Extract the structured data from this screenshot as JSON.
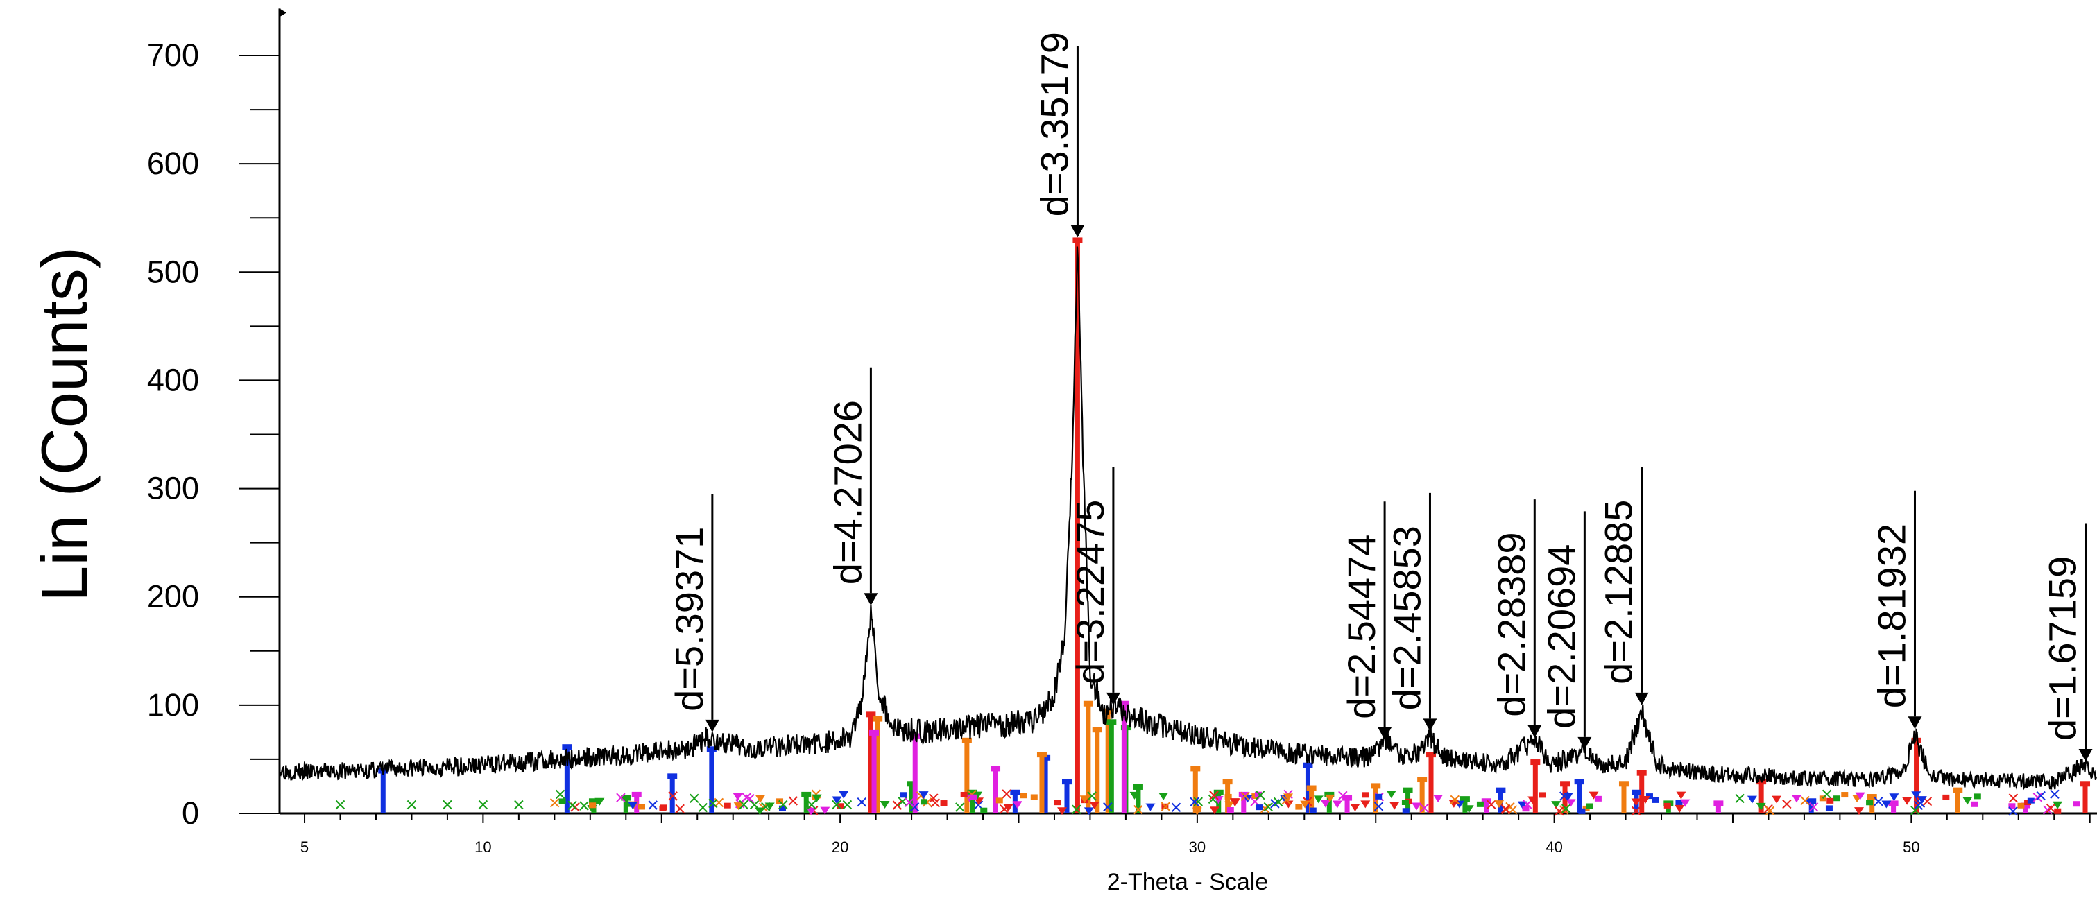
{
  "chart_data": {
    "type": "line",
    "title": "",
    "xlabel": "2-Theta - Scale",
    "ylabel": "Lin (Counts)",
    "xlim": [
      4.3,
      55.2
    ],
    "ylim": [
      0,
      700
    ],
    "x_ticks": [
      5,
      10,
      20,
      30,
      40,
      50
    ],
    "y_ticks": [
      0,
      100,
      200,
      300,
      400,
      500,
      600,
      700
    ],
    "series": [
      {
        "points": [
          [
            4.3,
            40
          ],
          [
            5,
            38
          ],
          [
            6,
            39
          ],
          [
            7,
            40
          ],
          [
            8,
            42
          ],
          [
            9,
            43
          ],
          [
            10,
            45
          ],
          [
            11,
            47
          ],
          [
            12,
            50
          ],
          [
            13,
            52
          ],
          [
            14,
            54
          ],
          [
            15,
            57
          ],
          [
            15.8,
            61
          ],
          [
            16.3,
            70
          ],
          [
            16.8,
            64
          ],
          [
            17.5,
            61
          ],
          [
            18.5,
            63
          ],
          [
            19.5,
            65
          ],
          [
            20.3,
            70
          ],
          [
            20.6,
            105
          ],
          [
            20.86,
            188
          ],
          [
            21.1,
            110
          ],
          [
            21.5,
            78
          ],
          [
            22.5,
            76
          ],
          [
            23.5,
            79
          ],
          [
            24.5,
            82
          ],
          [
            25.5,
            86
          ],
          [
            26.0,
            110
          ],
          [
            26.3,
            170
          ],
          [
            26.5,
            330
          ],
          [
            26.65,
            530
          ],
          [
            26.8,
            330
          ],
          [
            27.0,
            130
          ],
          [
            27.4,
            92
          ],
          [
            27.65,
            100
          ],
          [
            28.0,
            92
          ],
          [
            29,
            80
          ],
          [
            30,
            72
          ],
          [
            31,
            64
          ],
          [
            32,
            58
          ],
          [
            33,
            55
          ],
          [
            34,
            52
          ],
          [
            34.8,
            52
          ],
          [
            35.25,
            68
          ],
          [
            35.7,
            52
          ],
          [
            36.2,
            56
          ],
          [
            36.52,
            73
          ],
          [
            36.9,
            52
          ],
          [
            37.5,
            50
          ],
          [
            38.5,
            44
          ],
          [
            39.45,
            68
          ],
          [
            39.9,
            45
          ],
          [
            40.85,
            57
          ],
          [
            41.3,
            43
          ],
          [
            42.0,
            48
          ],
          [
            42.45,
            95
          ],
          [
            42.9,
            44
          ],
          [
            44,
            38
          ],
          [
            45,
            35
          ],
          [
            46,
            35
          ],
          [
            47,
            32
          ],
          [
            48,
            32
          ],
          [
            49,
            31
          ],
          [
            49.8,
            38
          ],
          [
            50.1,
            72
          ],
          [
            50.5,
            38
          ],
          [
            51,
            31
          ],
          [
            52,
            31
          ],
          [
            53,
            30
          ],
          [
            54,
            29
          ],
          [
            54.9,
            46
          ],
          [
            55.2,
            28
          ]
        ]
      }
    ],
    "peaks": [
      {
        "x": 16.42,
        "y": 75,
        "label": "d=5.39371"
      },
      {
        "x": 20.86,
        "y": 192,
        "label": "d=4.27026"
      },
      {
        "x": 26.65,
        "y": 532,
        "label": "d=3.35179"
      },
      {
        "x": 27.65,
        "y": 100,
        "label": "d=3.22475"
      },
      {
        "x": 35.25,
        "y": 68,
        "label": "d=2.54474"
      },
      {
        "x": 36.52,
        "y": 76,
        "label": "d=2.45853"
      },
      {
        "x": 39.45,
        "y": 70,
        "label": "d=2.28389"
      },
      {
        "x": 40.85,
        "y": 59,
        "label": "d=2.20694"
      },
      {
        "x": 42.45,
        "y": 100,
        "label": "d=2.12885"
      },
      {
        "x": 50.1,
        "y": 78,
        "label": "d=1.81932"
      },
      {
        "x": 54.88,
        "y": 48,
        "label": "d=1.67159"
      }
    ],
    "reference_series": [
      {
        "color": "#e8201a",
        "sticks": [
          {
            "x": 20.86,
            "y": 92
          },
          {
            "x": 26.65,
            "y": 530
          },
          {
            "x": 36.55,
            "y": 55
          },
          {
            "x": 39.47,
            "y": 48
          },
          {
            "x": 40.3,
            "y": 28
          },
          {
            "x": 42.45,
            "y": 38
          },
          {
            "x": 45.8,
            "y": 30
          },
          {
            "x": 50.14,
            "y": 68
          },
          {
            "x": 54.87,
            "y": 28
          }
        ]
      },
      {
        "color": "#1030e0",
        "sticks": [
          {
            "x": 7.2,
            "y": 40
          },
          {
            "x": 12.35,
            "y": 62
          },
          {
            "x": 15.3,
            "y": 35
          },
          {
            "x": 16.4,
            "y": 60
          },
          {
            "x": 24.9,
            "y": 20
          },
          {
            "x": 25.75,
            "y": 52
          },
          {
            "x": 26.35,
            "y": 30
          },
          {
            "x": 33.1,
            "y": 45
          },
          {
            "x": 38.5,
            "y": 22
          },
          {
            "x": 40.7,
            "y": 30
          },
          {
            "x": 42.3,
            "y": 20
          },
          {
            "x": 47.2,
            "y": 12
          }
        ]
      },
      {
        "color": "#f07c10",
        "sticks": [
          {
            "x": 21.05,
            "y": 88
          },
          {
            "x": 23.55,
            "y": 68
          },
          {
            "x": 25.65,
            "y": 55
          },
          {
            "x": 26.95,
            "y": 102
          },
          {
            "x": 27.2,
            "y": 78
          },
          {
            "x": 27.5,
            "y": 95
          },
          {
            "x": 29.95,
            "y": 42
          },
          {
            "x": 30.85,
            "y": 30
          },
          {
            "x": 33.2,
            "y": 24
          },
          {
            "x": 35.0,
            "y": 26
          },
          {
            "x": 36.3,
            "y": 32
          },
          {
            "x": 41.95,
            "y": 28
          },
          {
            "x": 48.9,
            "y": 16
          },
          {
            "x": 51.3,
            "y": 22
          }
        ]
      },
      {
        "color": "#18a018",
        "sticks": [
          {
            "x": 13.1,
            "y": 12
          },
          {
            "x": 14.0,
            "y": 15
          },
          {
            "x": 19.05,
            "y": 18
          },
          {
            "x": 22.0,
            "y": 28
          },
          {
            "x": 23.7,
            "y": 20
          },
          {
            "x": 27.6,
            "y": 85
          },
          {
            "x": 28.0,
            "y": 80
          },
          {
            "x": 28.35,
            "y": 25
          },
          {
            "x": 30.6,
            "y": 20
          },
          {
            "x": 33.7,
            "y": 18
          },
          {
            "x": 35.9,
            "y": 22
          },
          {
            "x": 37.5,
            "y": 14
          },
          {
            "x": 43.2,
            "y": 10
          }
        ]
      },
      {
        "color": "#e020e0",
        "sticks": [
          {
            "x": 14.3,
            "y": 18
          },
          {
            "x": 20.95,
            "y": 75
          },
          {
            "x": 22.1,
            "y": 72
          },
          {
            "x": 24.35,
            "y": 42
          },
          {
            "x": 27.95,
            "y": 102
          },
          {
            "x": 31.3,
            "y": 18
          },
          {
            "x": 34.2,
            "y": 15
          },
          {
            "x": 38.1,
            "y": 12
          },
          {
            "x": 44.6,
            "y": 10
          },
          {
            "x": 49.5,
            "y": 10
          },
          {
            "x": 53.2,
            "y": 8
          }
        ]
      }
    ],
    "grid": false,
    "legend": "none"
  }
}
